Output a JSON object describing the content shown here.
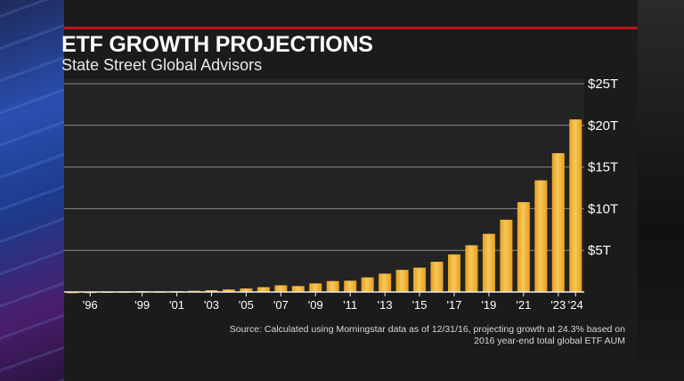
{
  "header": {
    "title": "ETF GROWTH PROJECTIONS",
    "subtitle": "State Street Global Advisors"
  },
  "footer": {
    "source": "Source: Calculated using Morningstar data as of 12/31/16, projecting growth at 24.3% based on 2016 year-end total global ETF AUM"
  },
  "colors": {
    "bar": "#e8a01e",
    "bar_highlight": "#f7c85a",
    "plot_background": "#232323",
    "gridline": "#8a8a8a",
    "text": "#ffffff",
    "accent_red": "#c0121e"
  },
  "chart_data": {
    "type": "bar",
    "title": "ETF GROWTH PROJECTIONS",
    "subtitle": "State Street Global Advisors",
    "xlabel": "",
    "ylabel": "",
    "ylim": [
      0,
      25
    ],
    "y_unit": "trillion USD",
    "y_ticks": [
      5,
      10,
      15,
      20,
      25
    ],
    "y_tick_labels": [
      "$5T",
      "$10T",
      "$15T",
      "$20T",
      "$25T"
    ],
    "grid": true,
    "x_tick_labels": [
      "'96",
      "'99",
      "'01",
      "'03",
      "'05",
      "'07",
      "'09",
      "'11",
      "'13",
      "'15",
      "'17",
      "'19",
      "'21",
      "'23",
      "'24"
    ],
    "x_tick_years": [
      1996,
      1999,
      2001,
      2003,
      2005,
      2007,
      2009,
      2011,
      2013,
      2015,
      2017,
      2019,
      2021,
      2023,
      2024
    ],
    "categories": [
      1995,
      1996,
      1997,
      1998,
      1999,
      2000,
      2001,
      2002,
      2003,
      2004,
      2005,
      2006,
      2007,
      2008,
      2009,
      2010,
      2011,
      2012,
      2013,
      2014,
      2015,
      2016,
      2017,
      2018,
      2019,
      2020,
      2021,
      2022,
      2023,
      2024
    ],
    "values": [
      0.02,
      0.03,
      0.05,
      0.07,
      0.1,
      0.08,
      0.1,
      0.14,
      0.21,
      0.3,
      0.42,
      0.58,
      0.8,
      0.71,
      1.03,
      1.31,
      1.35,
      1.75,
      2.2,
      2.65,
      2.92,
      3.63,
      4.51,
      5.61,
      6.98,
      8.67,
      10.78,
      13.4,
      16.66,
      20.71
    ]
  }
}
